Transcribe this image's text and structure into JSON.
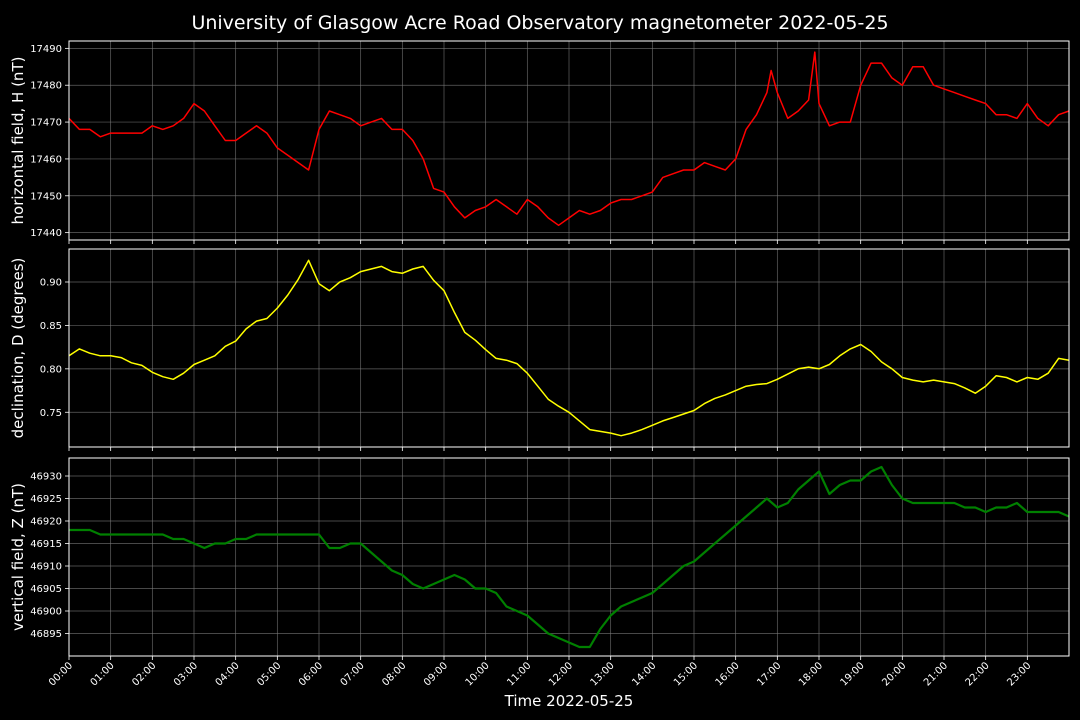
{
  "figure": {
    "title": "University of Glasgow Acre Road Observatory magnetometer 2022-05-25",
    "xlabel": "Time 2022-05-25",
    "x_tick_labels": [
      "00:00",
      "01:00",
      "02:00",
      "03:00",
      "04:00",
      "05:00",
      "06:00",
      "07:00",
      "08:00",
      "09:00",
      "10:00",
      "11:00",
      "12:00",
      "13:00",
      "14:00",
      "15:00",
      "16:00",
      "17:00",
      "18:00",
      "19:00",
      "20:00",
      "21:00",
      "22:00",
      "23:00"
    ]
  },
  "chart_data": [
    {
      "type": "line",
      "ylabel": "horizontal field, H (nT)",
      "x_unit": "hours",
      "xlim": [
        0,
        24
      ],
      "ylim": [
        17438,
        17492
      ],
      "y_ticks": [
        17440,
        17450,
        17460,
        17470,
        17480,
        17490
      ],
      "grid": true,
      "series": [
        {
          "color": "#ff0000",
          "x": [
            0,
            0.25,
            0.5,
            0.75,
            1,
            1.25,
            1.5,
            1.75,
            2,
            2.25,
            2.5,
            2.75,
            3,
            3.25,
            3.5,
            3.75,
            4,
            4.25,
            4.5,
            4.75,
            5,
            5.25,
            5.5,
            5.75,
            6,
            6.25,
            6.5,
            6.75,
            7,
            7.25,
            7.5,
            7.75,
            8,
            8.25,
            8.5,
            8.75,
            9,
            9.25,
            9.5,
            9.75,
            10,
            10.25,
            10.5,
            10.75,
            11,
            11.25,
            11.5,
            11.75,
            12,
            12.25,
            12.5,
            12.75,
            13,
            13.25,
            13.5,
            13.75,
            14,
            14.25,
            14.5,
            14.75,
            15,
            15.25,
            15.5,
            15.75,
            16,
            16.25,
            16.5,
            16.75,
            16.85,
            17,
            17.25,
            17.5,
            17.75,
            17.9,
            18,
            18.25,
            18.5,
            18.75,
            19,
            19.25,
            19.5,
            19.75,
            20,
            20.25,
            20.5,
            20.75,
            21,
            21.25,
            21.5,
            21.75,
            22,
            22.25,
            22.5,
            22.75,
            23,
            23.25,
            23.5,
            23.75,
            24
          ],
          "y": [
            17471,
            17468,
            17468,
            17466,
            17467,
            17467,
            17467,
            17467,
            17469,
            17468,
            17469,
            17471,
            17475,
            17473,
            17469,
            17465,
            17465,
            17467,
            17469,
            17467,
            17463,
            17461,
            17459,
            17457,
            17468,
            17473,
            17472,
            17471,
            17469,
            17470,
            17471,
            17468,
            17468,
            17465,
            17460,
            17452,
            17451,
            17447,
            17444,
            17446,
            17447,
            17449,
            17447,
            17445,
            17449,
            17447,
            17444,
            17442,
            17444,
            17446,
            17445,
            17446,
            17448,
            17449,
            17449,
            17450,
            17451,
            17455,
            17456,
            17457,
            17457,
            17459,
            17458,
            17457,
            17460,
            17468,
            17472,
            17478,
            17484,
            17478,
            17471,
            17473,
            17476,
            17489,
            17475,
            17469,
            17470,
            17470,
            17480,
            17486,
            17486,
            17482,
            17480,
            17485,
            17485,
            17480,
            17479,
            17478,
            17477,
            17476,
            17475,
            17472,
            17472,
            17471,
            17475,
            17471,
            17469,
            17472,
            17473
          ]
        }
      ]
    },
    {
      "type": "line",
      "ylabel": "declination, D (degrees)",
      "x_unit": "hours",
      "xlim": [
        0,
        24
      ],
      "ylim": [
        0.71,
        0.938
      ],
      "y_ticks": [
        0.75,
        0.8,
        0.85,
        0.9
      ],
      "grid": true,
      "series": [
        {
          "color": "#ffff00",
          "x": [
            0,
            0.25,
            0.5,
            0.75,
            1,
            1.25,
            1.5,
            1.75,
            2,
            2.25,
            2.5,
            2.75,
            3,
            3.25,
            3.5,
            3.75,
            4,
            4.25,
            4.5,
            4.75,
            5,
            5.25,
            5.5,
            5.75,
            6,
            6.25,
            6.5,
            6.75,
            7,
            7.25,
            7.5,
            7.75,
            8,
            8.25,
            8.5,
            8.75,
            9,
            9.25,
            9.5,
            9.75,
            10,
            10.25,
            10.5,
            10.75,
            11,
            11.25,
            11.5,
            11.75,
            12,
            12.25,
            12.5,
            12.75,
            13,
            13.25,
            13.5,
            13.75,
            14,
            14.25,
            14.5,
            14.75,
            15,
            15.25,
            15.5,
            15.75,
            16,
            16.25,
            16.5,
            16.75,
            17,
            17.25,
            17.5,
            17.75,
            18,
            18.25,
            18.5,
            18.75,
            19,
            19.25,
            19.5,
            19.75,
            20,
            20.25,
            20.5,
            20.75,
            21,
            21.25,
            21.5,
            21.75,
            22,
            22.25,
            22.5,
            22.75,
            23,
            23.25,
            23.5,
            23.75,
            24
          ],
          "y": [
            0.815,
            0.823,
            0.818,
            0.815,
            0.815,
            0.813,
            0.807,
            0.804,
            0.796,
            0.791,
            0.788,
            0.795,
            0.805,
            0.81,
            0.815,
            0.826,
            0.832,
            0.846,
            0.855,
            0.858,
            0.87,
            0.885,
            0.903,
            0.925,
            0.898,
            0.89,
            0.9,
            0.905,
            0.912,
            0.915,
            0.918,
            0.912,
            0.91,
            0.915,
            0.918,
            0.902,
            0.89,
            0.865,
            0.842,
            0.833,
            0.822,
            0.812,
            0.81,
            0.806,
            0.795,
            0.78,
            0.765,
            0.757,
            0.75,
            0.74,
            0.73,
            0.728,
            0.726,
            0.723,
            0.726,
            0.73,
            0.735,
            0.74,
            0.744,
            0.748,
            0.752,
            0.76,
            0.766,
            0.77,
            0.775,
            0.78,
            0.782,
            0.783,
            0.788,
            0.794,
            0.8,
            0.802,
            0.8,
            0.805,
            0.815,
            0.823,
            0.828,
            0.82,
            0.808,
            0.8,
            0.79,
            0.787,
            0.785,
            0.787,
            0.785,
            0.783,
            0.778,
            0.772,
            0.78,
            0.792,
            0.79,
            0.785,
            0.79,
            0.788,
            0.795,
            0.812,
            0.81
          ]
        }
      ]
    },
    {
      "type": "line",
      "ylabel": "vertical field, Z (nT)",
      "x_unit": "hours",
      "xlim": [
        0,
        24
      ],
      "ylim": [
        46890,
        46934
      ],
      "y_ticks": [
        46895,
        46900,
        46905,
        46910,
        46915,
        46920,
        46925,
        46930
      ],
      "grid": true,
      "series": [
        {
          "color": "#008000",
          "x": [
            0,
            0.25,
            0.5,
            0.75,
            1,
            1.25,
            1.5,
            1.75,
            2,
            2.25,
            2.5,
            2.75,
            3,
            3.25,
            3.5,
            3.75,
            4,
            4.25,
            4.5,
            4.75,
            5,
            5.25,
            5.5,
            5.75,
            6,
            6.25,
            6.5,
            6.75,
            7,
            7.25,
            7.5,
            7.75,
            8,
            8.25,
            8.5,
            8.75,
            9,
            9.25,
            9.5,
            9.75,
            10,
            10.25,
            10.5,
            10.75,
            11,
            11.25,
            11.5,
            11.75,
            12,
            12.25,
            12.5,
            12.75,
            13,
            13.25,
            13.5,
            13.75,
            14,
            14.25,
            14.5,
            14.75,
            15,
            15.25,
            15.5,
            15.75,
            16,
            16.25,
            16.5,
            16.75,
            17,
            17.25,
            17.5,
            17.75,
            18,
            18.25,
            18.5,
            18.75,
            19,
            19.25,
            19.5,
            19.75,
            20,
            20.25,
            20.5,
            20.75,
            21,
            21.25,
            21.5,
            21.75,
            22,
            22.25,
            22.5,
            22.75,
            23,
            23.25,
            23.5,
            23.75,
            24
          ],
          "y": [
            46918,
            46918,
            46918,
            46917,
            46917,
            46917,
            46917,
            46917,
            46917,
            46917,
            46916,
            46916,
            46915,
            46914,
            46915,
            46915,
            46916,
            46916,
            46917,
            46917,
            46917,
            46917,
            46917,
            46917,
            46917,
            46914,
            46914,
            46915,
            46915,
            46913,
            46911,
            46909,
            46908,
            46906,
            46905,
            46906,
            46907,
            46908,
            46907,
            46905,
            46905,
            46904,
            46901,
            46900,
            46899,
            46897,
            46895,
            46894,
            46893,
            46892,
            46892,
            46896,
            46899,
            46901,
            46902,
            46903,
            46904,
            46906,
            46908,
            46910,
            46911,
            46913,
            46915,
            46917,
            46919,
            46921,
            46923,
            46925,
            46923,
            46924,
            46927,
            46929,
            46931,
            46926,
            46928,
            46929,
            46929,
            46931,
            46932,
            46928,
            46925,
            46924,
            46924,
            46924,
            46924,
            46924,
            46923,
            46923,
            46922,
            46923,
            46923,
            46924,
            46922,
            46922,
            46922,
            46922,
            46921
          ]
        }
      ]
    }
  ]
}
